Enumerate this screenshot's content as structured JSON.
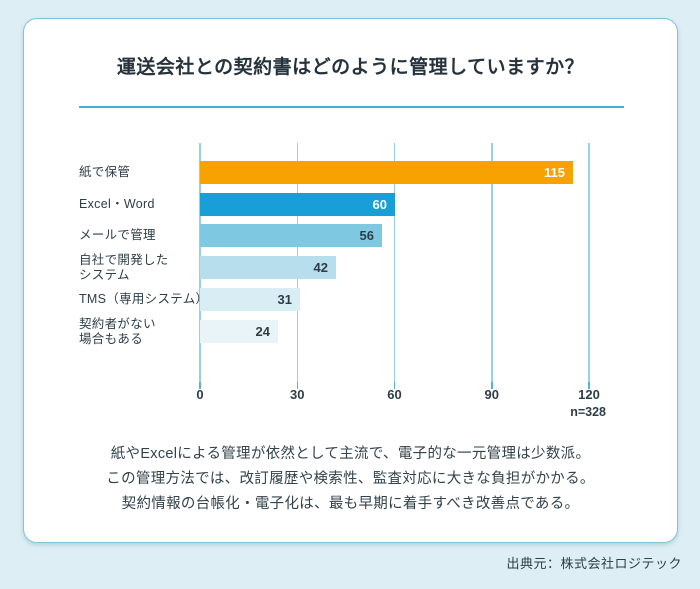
{
  "title": "運送会社との契約書はどのように管理していますか？",
  "chart_data": {
    "type": "bar",
    "orientation": "horizontal",
    "title": "運送会社との契約書はどのように管理していますか？",
    "categories": [
      "紙で保管",
      "Excel・Word",
      "メールで管理",
      "自社で開発したシステム",
      "TMS（専用システム）",
      "契約者がない場合もある"
    ],
    "category_label_lines": [
      [
        "紙で保管"
      ],
      [
        "Excel・Word"
      ],
      [
        "メールで管理"
      ],
      [
        "自社で開発した",
        "システム"
      ],
      [
        "TMS（専用システム）"
      ],
      [
        "契約者がない",
        "場合もある"
      ]
    ],
    "values": [
      115,
      60,
      56,
      42,
      31,
      24
    ],
    "bar_colors": [
      "#F7A201",
      "#189FD8",
      "#7FC8E2",
      "#B6DEEC",
      "#D9EDF4",
      "#E8F4F8"
    ],
    "value_label_colors": [
      "#FFFFFF",
      "#FFFFFF",
      "#2E3E48",
      "#2E3E48",
      "#2E3E48",
      "#2E3E48"
    ],
    "x_ticks": [
      0,
      30,
      60,
      90,
      120
    ],
    "xlim": [
      0,
      120
    ],
    "grid": true,
    "legend_position": "none",
    "sample_size_label": "n=328"
  },
  "summary_lines": [
    "紙やExcelによる管理が依然として主流で、電子的な一元管理は少数派。",
    "この管理方法では、改訂履歴や検索性、監査対応に大きな負担がかかる。",
    "契約情報の台帳化・電子化は、最も早期に着手すべき改善点である。"
  ],
  "source": "出典元：株式会社ロジテック",
  "colors": {
    "page_background": "#DDEEF5",
    "card_background": "#FFFFFF",
    "card_border": "#85C2D6",
    "divider": "#48AFCE",
    "gridline": "#96D2E5",
    "tick": "#55B4D2",
    "text_dark": "#2E3E48",
    "accent_orange": "#F7A201",
    "accent_blue": "#189FD8"
  }
}
